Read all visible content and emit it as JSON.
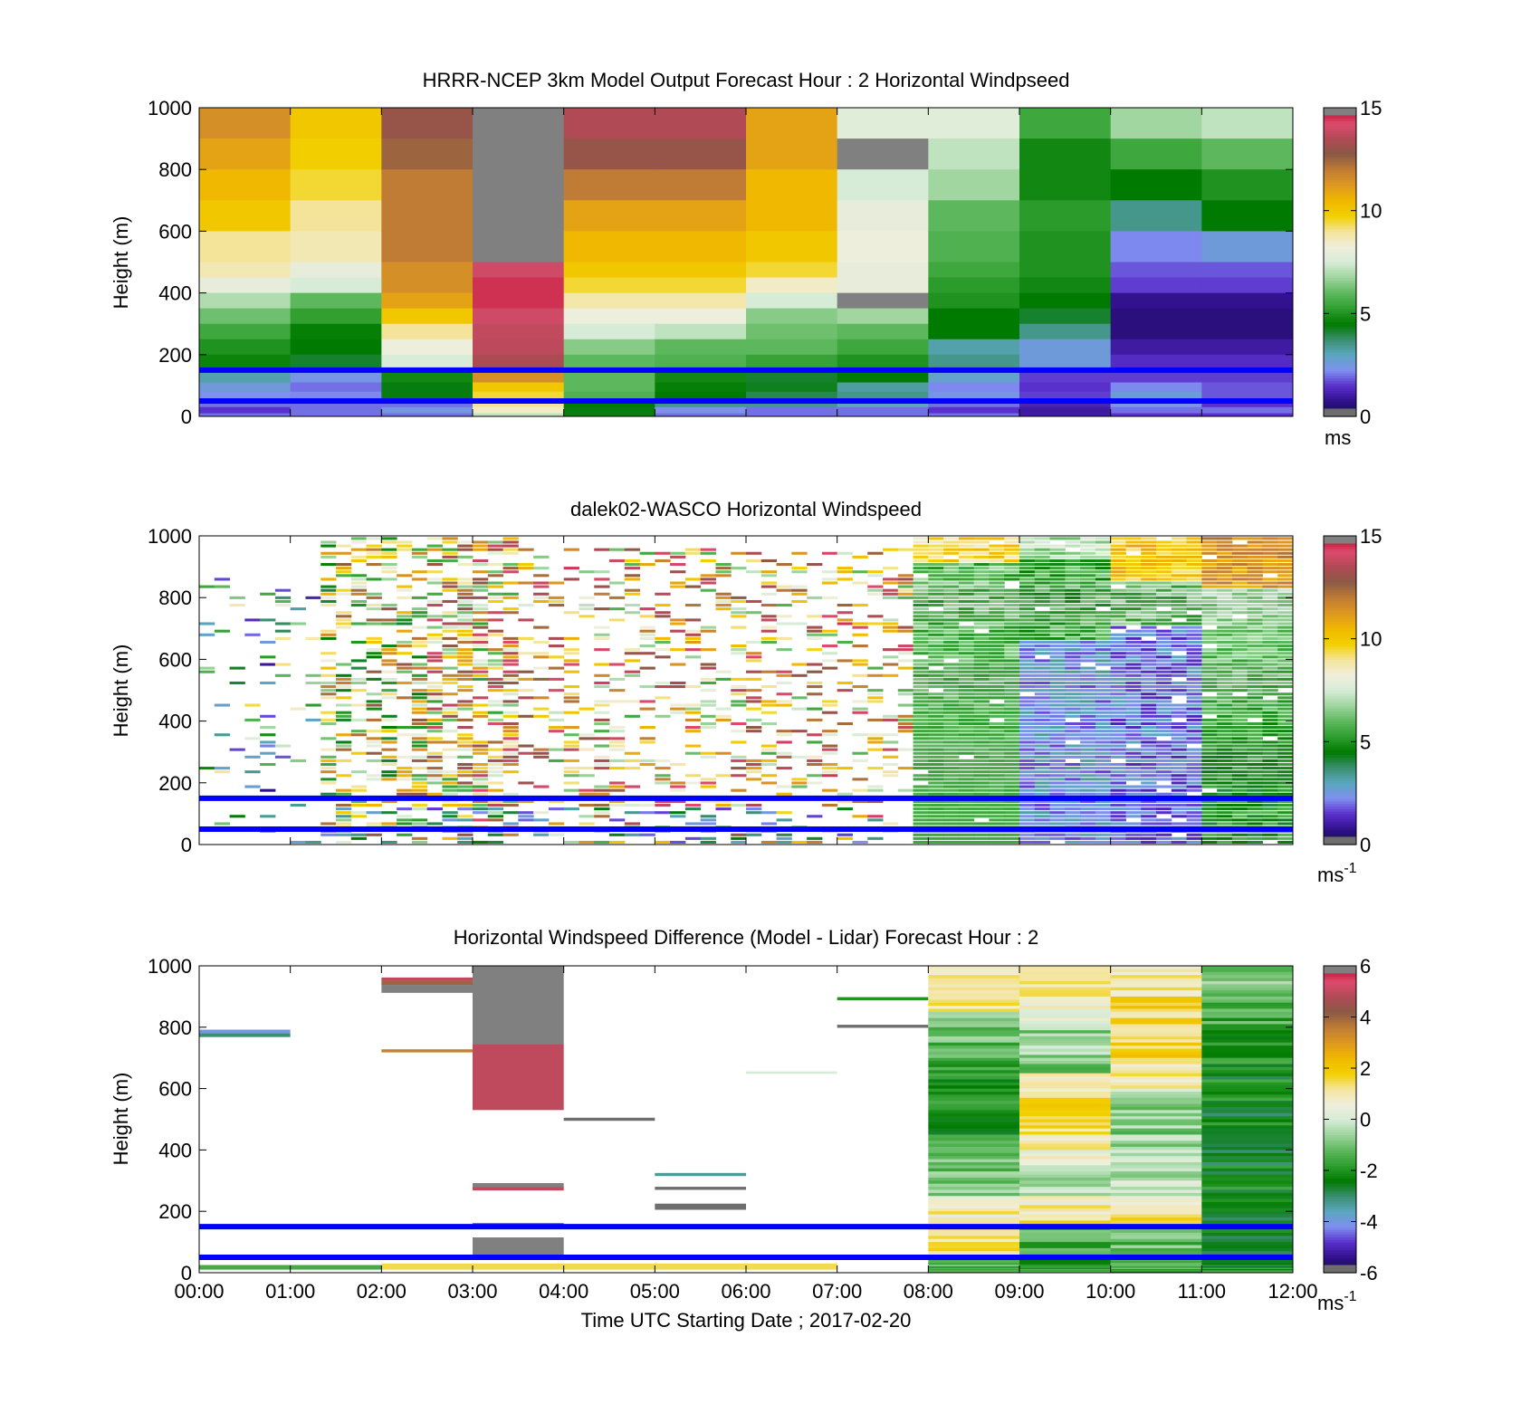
{
  "figure": {
    "xlabel": "Time UTC  Starting Date ; 2017-02-20",
    "xticks": [
      "00:00",
      "01:00",
      "02:00",
      "03:00",
      "04:00",
      "05:00",
      "06:00",
      "07:00",
      "08:00",
      "09:00",
      "10:00",
      "11:00",
      "12:00"
    ]
  },
  "colors": {
    "reference_lines": "#0000ff",
    "colormap": [
      "#6e6e6e",
      "#151040",
      "#30108c",
      "#5a30cc",
      "#7f8ff0",
      "#5ba7c0",
      "#3a8f70",
      "#007a00",
      "#2e9e2e",
      "#5db85d",
      "#9dd49d",
      "#d6ecd6",
      "#f0eedc",
      "#f4e49a",
      "#f2d000",
      "#f0b800",
      "#de9820",
      "#c07c34",
      "#8a5a45",
      "#b04a55",
      "#de4a6e",
      "#b0001e",
      "#808080"
    ]
  },
  "chart_data": [
    {
      "type": "heatmap",
      "title": "HRRR-NCEP 3km Model Output   Forecast Hour : 2 Horizontal Windpseed",
      "ylabel": "Height (m)",
      "xlim": [
        "00:00",
        "12:00"
      ],
      "ylim": [
        0,
        1000
      ],
      "yticks": [
        "0",
        "200",
        "400",
        "600",
        "800",
        "1000"
      ],
      "colorbar": {
        "range": [
          0,
          15
        ],
        "ticks": [
          "0",
          "5",
          "10",
          "15"
        ],
        "unit": "ms"
      },
      "reference_lines_m": [
        50,
        150
      ],
      "columns_hourly": 12,
      "rows_m": [
        1000,
        900,
        800,
        700,
        600,
        500,
        450,
        400,
        350,
        300,
        250,
        200,
        150,
        110,
        80,
        50,
        30,
        10
      ],
      "values": [
        [
          11.5,
          10.0,
          13.0,
          15.0,
          13.5,
          13.5,
          11.0,
          7.8,
          7.8,
          5.5,
          6.8,
          7.2
        ],
        [
          11.0,
          9.8,
          12.5,
          15.0,
          13.0,
          13.0,
          11.0,
          15.0,
          7.2,
          4.8,
          5.5,
          6.0
        ],
        [
          10.5,
          9.5,
          12.0,
          15.0,
          12.0,
          12.0,
          10.5,
          7.5,
          6.8,
          4.8,
          4.5,
          5.0
        ],
        [
          10.0,
          9.0,
          12.0,
          15.0,
          11.0,
          11.0,
          10.5,
          8.0,
          6.0,
          5.2,
          3.5,
          4.5
        ],
        [
          9.0,
          8.7,
          12.0,
          15.0,
          10.5,
          10.5,
          10.0,
          8.2,
          5.8,
          5.0,
          2.2,
          2.6
        ],
        [
          8.7,
          8.0,
          11.5,
          14.0,
          10.0,
          10.0,
          9.5,
          8.0,
          5.5,
          5.0,
          1.8,
          1.8
        ],
        [
          8.0,
          7.5,
          11.5,
          14.5,
          9.5,
          9.5,
          8.5,
          8.0,
          5.2,
          4.8,
          1.6,
          1.6
        ],
        [
          7.0,
          6.0,
          11.0,
          14.5,
          8.8,
          8.8,
          7.5,
          15.0,
          5.0,
          4.5,
          0.8,
          0.8
        ],
        [
          6.2,
          5.3,
          10.0,
          14.0,
          8.2,
          8.2,
          6.5,
          6.8,
          4.5,
          4.2,
          0.6,
          0.6
        ],
        [
          5.5,
          4.6,
          9.0,
          13.8,
          7.5,
          7.2,
          6.2,
          6.0,
          4.5,
          3.5,
          0.6,
          0.6
        ],
        [
          5.0,
          4.5,
          8.2,
          13.7,
          6.5,
          6.0,
          6.0,
          5.5,
          3.2,
          2.6,
          1.0,
          1.0
        ],
        [
          4.7,
          4.2,
          7.6,
          13.4,
          6.0,
          5.8,
          5.4,
          5.0,
          3.5,
          2.6,
          1.4,
          1.4
        ],
        [
          3.2,
          2.4,
          4.8,
          11.5,
          6.0,
          4.8,
          4.2,
          4.5,
          2.8,
          1.6,
          1.6,
          1.6
        ],
        [
          2.6,
          2.0,
          4.4,
          10.0,
          6.0,
          4.6,
          4.3,
          3.3,
          2.2,
          1.5,
          2.2,
          1.8
        ],
        [
          2.3,
          2.2,
          4.4,
          9.5,
          5.8,
          4.5,
          4.0,
          3.5,
          2.4,
          1.6,
          2.7,
          1.8
        ],
        [
          2.0,
          2.0,
          2.0,
          9.0,
          4.5,
          3.5,
          3.5,
          3.0,
          2.0,
          1.2,
          2.3,
          1.5
        ],
        [
          1.5,
          2.0,
          2.5,
          8.5,
          4.4,
          2.3,
          2.0,
          2.0,
          1.5,
          1.0,
          2.0,
          2.0
        ],
        [
          2.0,
          2.0,
          2.0,
          7.2,
          4.4,
          2.0,
          2.0,
          2.0,
          2.0,
          1.0,
          1.5,
          1.5
        ]
      ]
    },
    {
      "type": "heatmap",
      "title": "dalek02-WASCO  Horizontal Windspeed",
      "ylabel": "Height (m)",
      "xlim": [
        "00:00",
        "12:00"
      ],
      "ylim": [
        0,
        1000
      ],
      "yticks": [
        "0",
        "200",
        "400",
        "600",
        "800",
        "1000"
      ],
      "colorbar": {
        "range": [
          0,
          15
        ],
        "ticks": [
          "0",
          "5",
          "10",
          "15"
        ],
        "unit": "ms",
        "unit_superscript": "-1"
      },
      "reference_lines_m": [
        50,
        150
      ],
      "time_step_minutes": 10,
      "height_step_m": 12,
      "description_of_pattern": "Sparse scattered retrievals before 07:50 (mixed 2-15 m/s), dense coverage after 07:50: greens 4-7 m/s near 08-09h, purples 1-3 m/s below 700 m around 09:30-11:00, yellows/oranges 8-11 m/s above 850 m after 10:30",
      "regimes": [
        {
          "t": [
            "00:00",
            "01:20"
          ],
          "coverage": 0.12,
          "levels_m": [
            0,
            900
          ],
          "mean": 5.0
        },
        {
          "t": [
            "01:20",
            "02:30"
          ],
          "coverage": 0.45,
          "levels_m": [
            0,
            1000
          ],
          "mean": 8.5
        },
        {
          "t": [
            "02:30",
            "03:30"
          ],
          "coverage": 0.65,
          "levels_m": [
            0,
            1000
          ],
          "mean": 9.8
        },
        {
          "t": [
            "03:30",
            "07:50"
          ],
          "coverage": 0.3,
          "levels_m": [
            0,
            950
          ],
          "mean": 10.0
        },
        {
          "t": [
            "07:50",
            "09:00"
          ],
          "coverage": 0.97,
          "levels_m": [
            0,
            1000
          ],
          "mean": 5.8
        },
        {
          "t": [
            "09:00",
            "10:00"
          ],
          "coverage": 0.97,
          "levels_m": [
            0,
            1000
          ],
          "mean": 3.5
        },
        {
          "t": [
            "10:00",
            "11:00"
          ],
          "coverage": 0.97,
          "levels_m": [
            0,
            1000
          ],
          "mean": 3.2
        },
        {
          "t": [
            "11:00",
            "12:00"
          ],
          "coverage": 0.97,
          "levels_m": [
            0,
            1000
          ],
          "mean": 5.0
        }
      ]
    },
    {
      "type": "heatmap",
      "title": "Horizontal Windspeed Difference (Model - Lidar) Forecast Hour : 2",
      "ylabel": "Height (m)",
      "xlim": [
        "00:00",
        "12:00"
      ],
      "ylim": [
        0,
        1000
      ],
      "yticks": [
        "0",
        "200",
        "400",
        "600",
        "800",
        "1000"
      ],
      "colorbar": {
        "range": [
          -6,
          6
        ],
        "ticks": [
          "-6",
          "-4",
          "-2",
          "0",
          "2",
          "4",
          "6"
        ],
        "unit": "ms",
        "unit_superscript": "-1"
      },
      "reference_lines_m": [
        50,
        150
      ],
      "segments": [
        {
          "t0": 0,
          "t1": 1,
          "y0": 780,
          "y1": 792,
          "v": -4.0
        },
        {
          "t0": 0,
          "t1": 1,
          "y0": 768,
          "y1": 780,
          "v": -3.0
        },
        {
          "t0": 2,
          "t1": 3,
          "y0": 950,
          "y1": 962,
          "v": 5.0
        },
        {
          "t0": 2,
          "t1": 3,
          "y0": 938,
          "y1": 950,
          "v": 4.0
        },
        {
          "t0": 2,
          "t1": 3,
          "y0": 912,
          "y1": 938,
          "v": 6.0
        },
        {
          "t0": 2,
          "t1": 3,
          "y0": 718,
          "y1": 728,
          "v": 3.5
        },
        {
          "t0": 3,
          "t1": 4,
          "y0": 745,
          "y1": 1000,
          "v": 6.0
        },
        {
          "t0": 3,
          "t1": 4,
          "y0": 530,
          "y1": 745,
          "v": 5.0
        },
        {
          "t0": 3,
          "t1": 4,
          "y0": 280,
          "y1": 292,
          "v": 6.0
        },
        {
          "t0": 3,
          "t1": 4,
          "y0": 268,
          "y1": 280,
          "v": 5.0
        },
        {
          "t0": 3,
          "t1": 4,
          "y0": 155,
          "y1": 162,
          "v": -4.5
        },
        {
          "t0": 3,
          "t1": 4,
          "y0": 50,
          "y1": 115,
          "v": 6.0
        },
        {
          "t0": 4,
          "t1": 5,
          "y0": 495,
          "y1": 505,
          "v": -6.0
        },
        {
          "t0": 5,
          "t1": 6,
          "y0": 315,
          "y1": 325,
          "v": -3.3
        },
        {
          "t0": 5,
          "t1": 6,
          "y0": 270,
          "y1": 280,
          "v": -6.0
        },
        {
          "t0": 5,
          "t1": 6,
          "y0": 205,
          "y1": 225,
          "v": -6.0
        },
        {
          "t0": 6,
          "t1": 7,
          "y0": 648,
          "y1": 656,
          "v": 0.0
        },
        {
          "t0": 7,
          "t1": 8,
          "y0": 888,
          "y1": 898,
          "v": -2.0
        },
        {
          "t0": 7,
          "t1": 8,
          "y0": 798,
          "y1": 808,
          "v": -6.0
        },
        {
          "t0": 2,
          "t1": 7,
          "y0": 10,
          "y1": 30,
          "v": 1.5
        },
        {
          "t0": 0,
          "t1": 2,
          "y0": 10,
          "y1": 25,
          "v": -1.5
        }
      ],
      "columns_after_08": {
        "comment": "Hourly profile columns 08:00-12:00, values per height row",
        "rows_m": [
          1000,
          950,
          900,
          850,
          800,
          750,
          700,
          650,
          600,
          550,
          500,
          450,
          400,
          350,
          300,
          250,
          200,
          150,
          100,
          50,
          20
        ],
        "values": [
          [
            1.2,
            0.8,
            1.0,
            -0.5,
            -1.0,
            -1.2,
            -1.5,
            -2.0,
            -1.8,
            -2.0,
            -2.2,
            -1.5,
            -1.2,
            -1.0,
            -0.8,
            0.8,
            1.0,
            1.2,
            1.2,
            -1.0,
            -1.5
          ],
          [
            1.2,
            1.0,
            0.8,
            0.2,
            -0.8,
            -0.5,
            -1.0,
            0.8,
            1.2,
            1.4,
            1.4,
            1.0,
            0.5,
            -0.5,
            -0.2,
            1.0,
            1.2,
            -1.5,
            -1.5,
            -2.0,
            -1.5
          ],
          [
            1.0,
            1.2,
            1.5,
            1.4,
            1.6,
            1.6,
            1.0,
            1.0,
            -0.5,
            -0.8,
            -0.8,
            -0.6,
            -0.5,
            -0.4,
            -0.2,
            1.0,
            1.2,
            -1.0,
            -1.2,
            -1.5,
            -1.5
          ],
          [
            -0.8,
            -1.0,
            -1.2,
            -1.5,
            -1.8,
            -2.0,
            -2.0,
            -2.2,
            -2.2,
            -2.4,
            -2.2,
            -2.2,
            -2.4,
            -2.2,
            -2.2,
            -2.4,
            -2.6,
            -2.6,
            -2.4,
            -2.2,
            -2.0
          ]
        ]
      }
    }
  ]
}
